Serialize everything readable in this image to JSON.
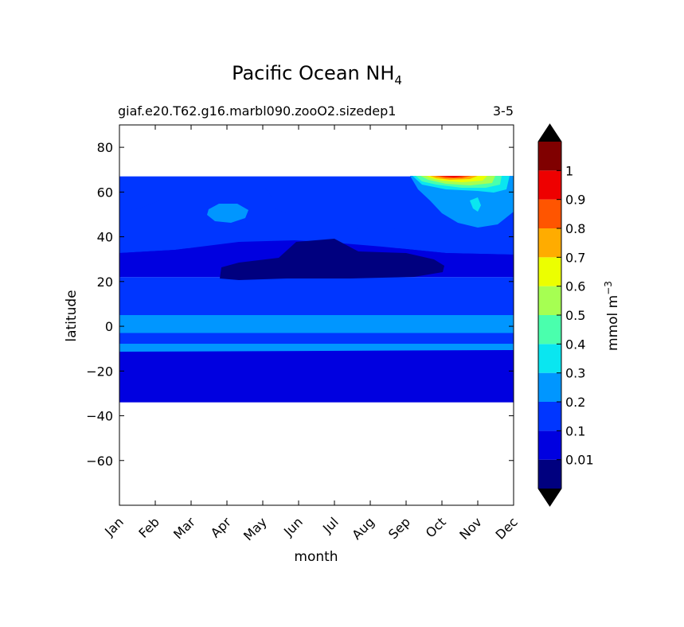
{
  "chart_data": {
    "type": "heatmap",
    "title": "Pacific Ocean NH",
    "title_subscript": "4",
    "subtitle_left": "giaf.e20.T62.g16.marbl090.zooO2.sizedep1",
    "subtitle_right": "3-5",
    "xlabel": "month",
    "ylabel": "latitude",
    "x_categories": [
      "Jan",
      "Feb",
      "Mar",
      "Apr",
      "May",
      "Jun",
      "Jul",
      "Aug",
      "Sep",
      "Oct",
      "Nov",
      "Dec"
    ],
    "ylim": [
      -80,
      90
    ],
    "y_ticks": [
      -60,
      -40,
      -20,
      0,
      20,
      40,
      60,
      80
    ],
    "y_tick_labels": [
      "−60",
      "−40",
      "−20",
      "0",
      "20",
      "40",
      "60",
      "80"
    ],
    "data_lat_range": [
      -34,
      67
    ],
    "colorbar": {
      "label": "mmol m",
      "label_superscript": "−3",
      "levels": [
        0,
        0.01,
        0.1,
        0.2,
        0.3,
        0.4,
        0.5,
        0.6,
        0.7,
        0.8,
        0.9,
        1,
        1.1
      ],
      "tick_labels": [
        "0.01",
        "0.1",
        "0.2",
        "0.3",
        "0.4",
        "0.5",
        "0.6",
        "0.7",
        "0.8",
        "0.9",
        "1"
      ],
      "colors": [
        "#00007f",
        "#0000e0",
        "#0036ff",
        "#0096ff",
        "#0ae6f0",
        "#4affad",
        "#a6ff52",
        "#ecff00",
        "#ffac00",
        "#ff5500",
        "#ee0000",
        "#800000"
      ],
      "extend_under_color": "#000000",
      "extend_over_color": "#000000"
    },
    "field_bands": [
      {
        "lat_range": [
          -34,
          -9
        ],
        "value": 0.05
      },
      {
        "lat_range": [
          -9,
          -3
        ],
        "value": 0.15
      },
      {
        "lat_range": [
          -3,
          5
        ],
        "value": 0.25
      },
      {
        "lat_range": [
          5,
          22
        ],
        "value": 0.15
      },
      {
        "lat_range": [
          22,
          35
        ],
        "value": 0.05
      },
      {
        "lat_range": [
          35,
          67
        ],
        "value": 0.15
      }
    ]
  }
}
